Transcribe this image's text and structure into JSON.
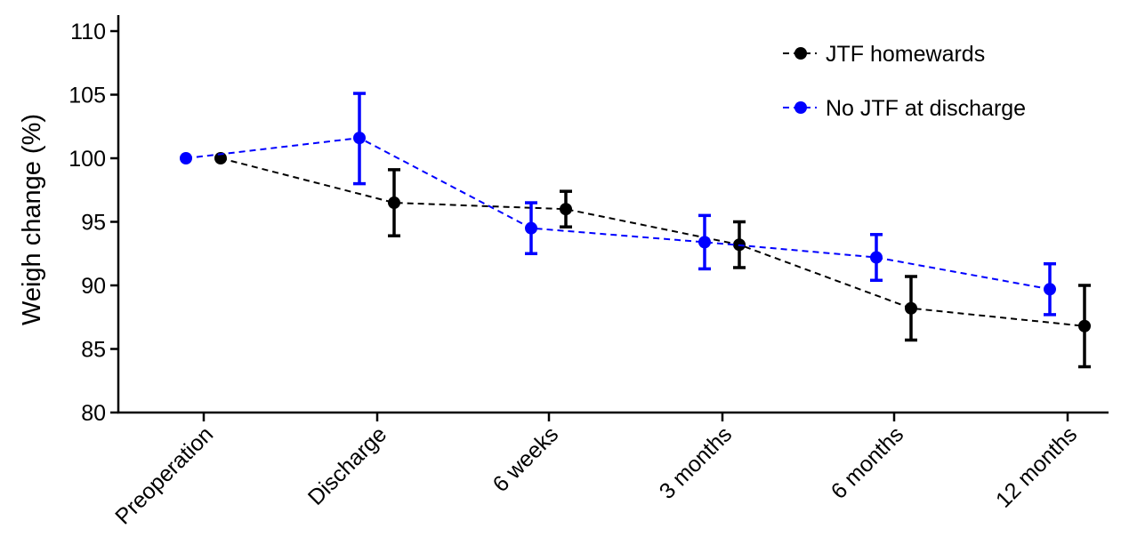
{
  "chart_data": {
    "type": "line",
    "title": "",
    "xlabel": "",
    "ylabel": "Weigh change (%)",
    "ylim": [
      80,
      110
    ],
    "yticks": [
      "80",
      "85",
      "90",
      "95",
      "100",
      "105",
      "110"
    ],
    "categories": [
      "Preoperation",
      "Discharge",
      "6 weeks",
      "3 months",
      "6 months",
      "12 months"
    ],
    "grid": false,
    "legend_position": "top-right",
    "series": [
      {
        "name": "JTF homewards",
        "color": "#000000",
        "values": [
          100,
          96.5,
          96.0,
          93.2,
          88.2,
          86.8
        ],
        "error_low": [
          null,
          93.9,
          94.6,
          91.4,
          85.7,
          83.6
        ],
        "error_high": [
          null,
          99.1,
          97.4,
          95.0,
          90.7,
          90.0
        ]
      },
      {
        "name": "No JTF at discharge",
        "color": "#0000ff",
        "values": [
          100,
          101.6,
          94.5,
          93.4,
          92.2,
          89.7
        ],
        "error_low": [
          null,
          98.0,
          92.5,
          91.3,
          90.4,
          87.7
        ],
        "error_high": [
          null,
          105.1,
          96.5,
          95.5,
          94.0,
          91.7
        ]
      }
    ]
  }
}
